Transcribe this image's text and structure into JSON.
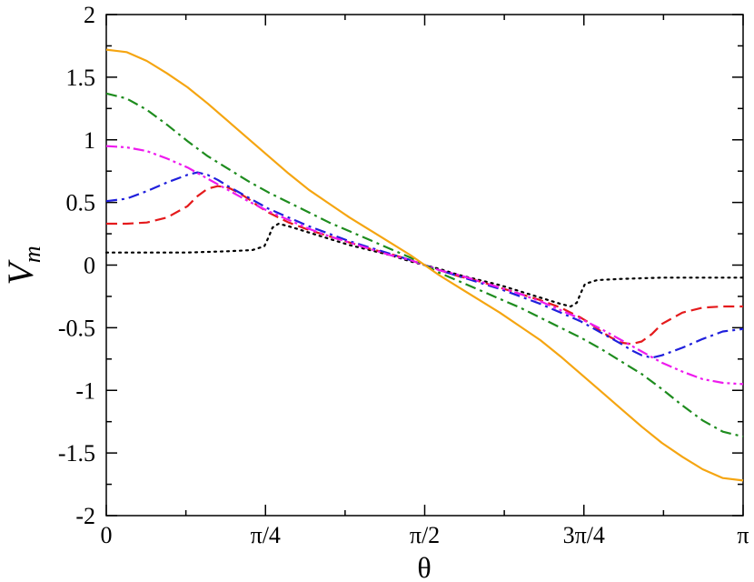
{
  "chart_data": {
    "type": "line",
    "xlabel": "θ",
    "ylabel": "V",
    "ylabel_subscript": "m",
    "xlim": [
      0,
      3.14159265
    ],
    "ylim": [
      -2,
      2
    ],
    "grid": false,
    "legend": "none",
    "x_ticks": [
      {
        "value": 0,
        "label": "0"
      },
      {
        "value": 0.78539816,
        "label": "π/4"
      },
      {
        "value": 1.57079633,
        "label": "π/2"
      },
      {
        "value": 2.35619449,
        "label": "3π/4"
      },
      {
        "value": 3.14159265,
        "label": "π"
      }
    ],
    "y_ticks": [
      {
        "value": -2,
        "label": "-2"
      },
      {
        "value": -1.5,
        "label": "-1.5"
      },
      {
        "value": -1,
        "label": "-1"
      },
      {
        "value": -0.5,
        "label": "-0.5"
      },
      {
        "value": 0,
        "label": "0"
      },
      {
        "value": 0.5,
        "label": "0.5"
      },
      {
        "value": 1,
        "label": "1"
      },
      {
        "value": 1.5,
        "label": "1.5"
      },
      {
        "value": 2,
        "label": "2"
      }
    ],
    "series": [
      {
        "color": "#000000",
        "style": "dotted",
        "x": [
          0,
          0.2,
          0.4,
          0.6,
          0.72,
          0.78,
          0.8,
          0.82,
          0.85,
          0.9,
          1.0,
          1.1,
          1.2,
          1.3,
          1.4,
          1.5,
          1.5708
        ],
        "y": [
          0.1,
          0.1,
          0.1,
          0.11,
          0.12,
          0.15,
          0.22,
          0.3,
          0.33,
          0.31,
          0.26,
          0.21,
          0.16,
          0.12,
          0.08,
          0.03,
          0
        ]
      },
      {
        "color": "#e41a1c",
        "style": "dashed",
        "x": [
          0,
          0.1,
          0.2,
          0.3,
          0.4,
          0.45,
          0.5,
          0.55,
          0.6,
          0.65,
          0.7,
          0.75,
          0.8,
          0.85,
          0.9,
          1.0,
          1.1,
          1.2,
          1.3,
          1.4,
          1.5,
          1.5708
        ],
        "y": [
          0.33,
          0.33,
          0.34,
          0.38,
          0.47,
          0.55,
          0.61,
          0.63,
          0.62,
          0.58,
          0.53,
          0.47,
          0.42,
          0.38,
          0.34,
          0.28,
          0.23,
          0.18,
          0.13,
          0.09,
          0.04,
          0
        ]
      },
      {
        "color": "#1f1fdc",
        "style": "dashdot",
        "x": [
          0,
          0.1,
          0.2,
          0.3,
          0.4,
          0.45,
          0.5,
          0.55,
          0.6,
          0.7,
          0.8,
          0.9,
          1.0,
          1.1,
          1.2,
          1.3,
          1.4,
          1.5,
          1.5708
        ],
        "y": [
          0.51,
          0.53,
          0.59,
          0.66,
          0.72,
          0.74,
          0.72,
          0.68,
          0.63,
          0.54,
          0.45,
          0.38,
          0.31,
          0.25,
          0.19,
          0.14,
          0.09,
          0.04,
          0
        ]
      },
      {
        "color": "#ee1aee",
        "style": "dashdotdot",
        "x": [
          0,
          0.1,
          0.2,
          0.3,
          0.4,
          0.5,
          0.6,
          0.7,
          0.8,
          0.9,
          1.0,
          1.1,
          1.2,
          1.3,
          1.4,
          1.5,
          1.5708
        ],
        "y": [
          0.95,
          0.94,
          0.91,
          0.85,
          0.78,
          0.69,
          0.6,
          0.51,
          0.43,
          0.36,
          0.29,
          0.23,
          0.18,
          0.13,
          0.08,
          0.04,
          0
        ]
      },
      {
        "color": "#1e8c1e",
        "style": "dashdot",
        "x": [
          0,
          0.1,
          0.2,
          0.3,
          0.4,
          0.5,
          0.6,
          0.7,
          0.8,
          0.9,
          1.0,
          1.1,
          1.2,
          1.3,
          1.4,
          1.5,
          1.5708
        ],
        "y": [
          1.37,
          1.33,
          1.24,
          1.12,
          0.99,
          0.87,
          0.77,
          0.67,
          0.58,
          0.5,
          0.42,
          0.34,
          0.27,
          0.2,
          0.13,
          0.06,
          0
        ]
      },
      {
        "color": "#f5a511",
        "style": "solid",
        "x": [
          0,
          0.1,
          0.2,
          0.3,
          0.4,
          0.5,
          0.6,
          0.7,
          0.8,
          0.9,
          1.0,
          1.1,
          1.2,
          1.3,
          1.4,
          1.5,
          1.5708
        ],
        "y": [
          1.72,
          1.7,
          1.63,
          1.53,
          1.42,
          1.29,
          1.15,
          1.01,
          0.87,
          0.73,
          0.6,
          0.49,
          0.38,
          0.28,
          0.18,
          0.08,
          0
        ]
      }
    ]
  }
}
